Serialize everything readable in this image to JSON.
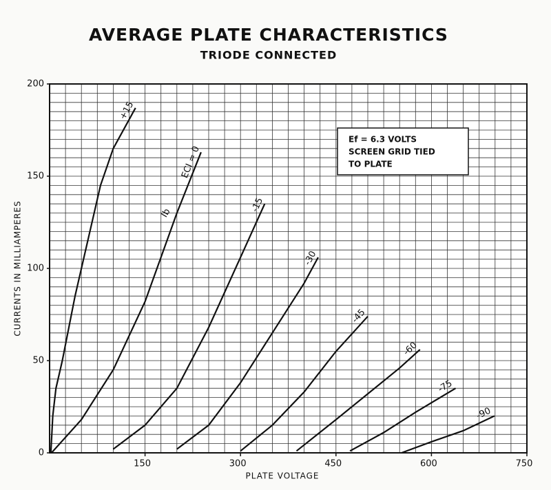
{
  "chart_data": {
    "type": "line",
    "title": "AVERAGE PLATE CHARACTERISTICS",
    "subtitle": "TRIODE CONNECTED",
    "x_label": "PLATE VOLTAGE",
    "y_label": "CURRENTS IN MILLIAMPERES",
    "reference": "c84010",
    "note": [
      "Ef = 6.3 VOLTS",
      "SCREEN GRID TIED",
      "TO PLATE"
    ],
    "curve_label": "Ib",
    "xlim": [
      0,
      750
    ],
    "ylim": [
      0,
      200
    ],
    "xticks": [
      150,
      300,
      450,
      600,
      750
    ],
    "yticks": [
      0,
      50,
      100,
      150,
      200
    ],
    "grid": true,
    "grid_step": {
      "x": 25,
      "y": 5
    },
    "series": [
      {
        "name": "+15",
        "color": "#111111",
        "x": [
          2,
          5,
          10,
          20,
          40,
          60,
          80,
          100,
          135
        ],
        "values": [
          0,
          20,
          35,
          50,
          85,
          115,
          145,
          165,
          187
        ]
      },
      {
        "name": "ECI = 0",
        "color": "#111111",
        "x": [
          3,
          50,
          100,
          150,
          200,
          238
        ],
        "values": [
          0,
          18,
          45,
          82,
          130,
          163
        ]
      },
      {
        "name": "-15",
        "color": "#111111",
        "x": [
          100,
          150,
          200,
          250,
          300,
          338
        ],
        "values": [
          2,
          15,
          35,
          68,
          106,
          135
        ]
      },
      {
        "name": "-30",
        "color": "#111111",
        "x": [
          200,
          250,
          300,
          350,
          400,
          422
        ],
        "values": [
          2,
          15,
          38,
          65,
          92,
          106
        ]
      },
      {
        "name": "-45",
        "color": "#111111",
        "x": [
          300,
          350,
          400,
          450,
          500
        ],
        "values": [
          1,
          15,
          33,
          55,
          74
        ]
      },
      {
        "name": "-60",
        "color": "#111111",
        "x": [
          388,
          450,
          500,
          550,
          582
        ],
        "values": [
          1,
          18,
          32,
          46,
          56
        ]
      },
      {
        "name": "-75",
        "color": "#111111",
        "x": [
          472,
          525,
          575,
          638
        ],
        "values": [
          1,
          11,
          22,
          35
        ]
      },
      {
        "name": "-90",
        "color": "#111111",
        "x": [
          553,
          600,
          650,
          699
        ],
        "values": [
          0,
          6,
          12,
          20
        ]
      }
    ]
  }
}
